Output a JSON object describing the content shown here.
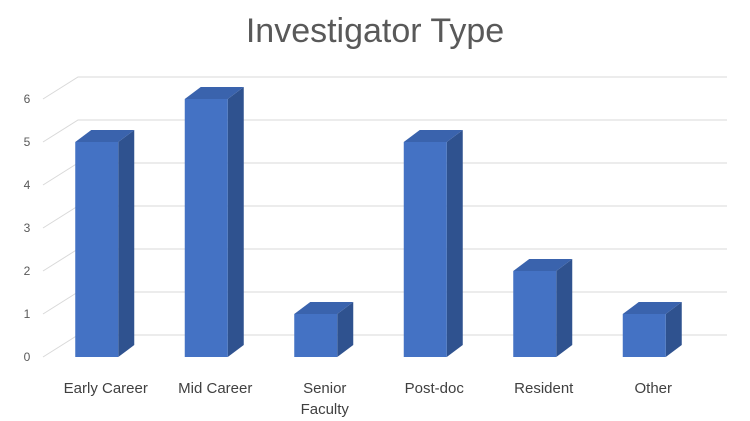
{
  "chart_data": {
    "type": "bar",
    "title": "Investigator Type",
    "categories": [
      "Early Career",
      "Mid Career",
      "Senior Faculty",
      "Post-doc",
      "Resident",
      "Other"
    ],
    "category_lines": [
      [
        "Early Career"
      ],
      [
        "Mid Career"
      ],
      [
        "Senior",
        "Faculty"
      ],
      [
        "Post-doc"
      ],
      [
        "Resident"
      ],
      [
        "Other"
      ]
    ],
    "values": [
      5,
      6,
      1,
      5,
      2,
      1
    ],
    "ylim": [
      0,
      6
    ],
    "yticks": [
      "0",
      "1",
      "2",
      "3",
      "4",
      "5",
      "6"
    ],
    "grid": true,
    "style": "3d-column",
    "colors": {
      "front": "#4472c4",
      "side": "#2f528f",
      "top": "#3a63ad",
      "grid": "#d9d9d9"
    }
  }
}
